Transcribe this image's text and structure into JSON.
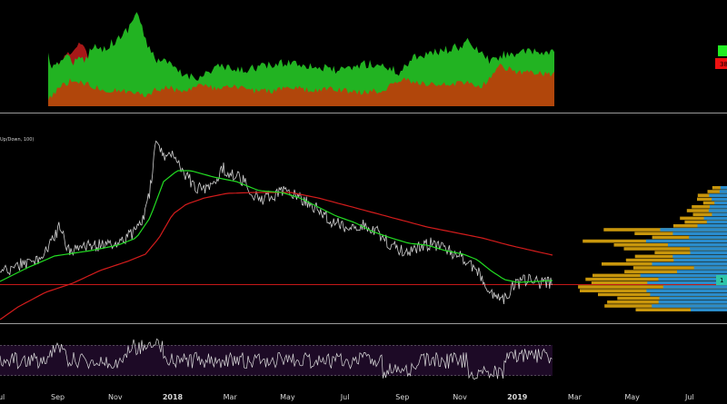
{
  "chart_data": {
    "type": "line",
    "title": "",
    "indicator_label": "Up/Down, 100)",
    "x_ticks": [
      {
        "label": "Jul",
        "month": -6
      },
      {
        "label": "Sep",
        "month": -4
      },
      {
        "label": "Nov",
        "month": -2
      },
      {
        "label": "2018",
        "month": 0,
        "bold": true
      },
      {
        "label": "Mar",
        "month": 2
      },
      {
        "label": "May",
        "month": 4
      },
      {
        "label": "Jul",
        "month": 6
      },
      {
        "label": "Sep",
        "month": 8
      },
      {
        "label": "Nov",
        "month": 10
      },
      {
        "label": "2019",
        "month": 12,
        "bold": true
      },
      {
        "label": "Mar",
        "month": 14
      },
      {
        "label": "May",
        "month": 16
      },
      {
        "label": "Jul",
        "month": 18
      }
    ],
    "colors": {
      "background": "#000000",
      "up_volume": "#1fb41f",
      "down_volume": "#b12a0a",
      "orange_volume": "#b4470a",
      "price": "#d8d8d8",
      "ma_fast": "#22dd22",
      "ma_slow": "#d41c1c",
      "horizontal_level": "#d41c1c",
      "profile_gold": "#c8960c",
      "profile_blue": "#2a8ccc",
      "rsi_band": "#1e0a26",
      "rsi_line": "#dcdcdc",
      "badge_green": "#22ee22",
      "badge_red": "#ee1111",
      "badge_teal": "#2ec4a8"
    },
    "top_panel": {
      "badge_top_text": "",
      "badge_bottom_text": "38"
    },
    "price_panel": {
      "level_badge_text": "1"
    },
    "price_series_months": [
      0,
      0.5,
      1,
      1.5,
      2,
      2.5,
      3,
      3.5,
      4,
      4.5,
      5,
      5.5,
      6,
      6.5,
      7,
      7.5,
      8,
      8.5,
      9,
      9.5,
      10,
      10.5,
      11,
      11.5,
      12,
      12.5,
      13
    ],
    "notes": ""
  }
}
